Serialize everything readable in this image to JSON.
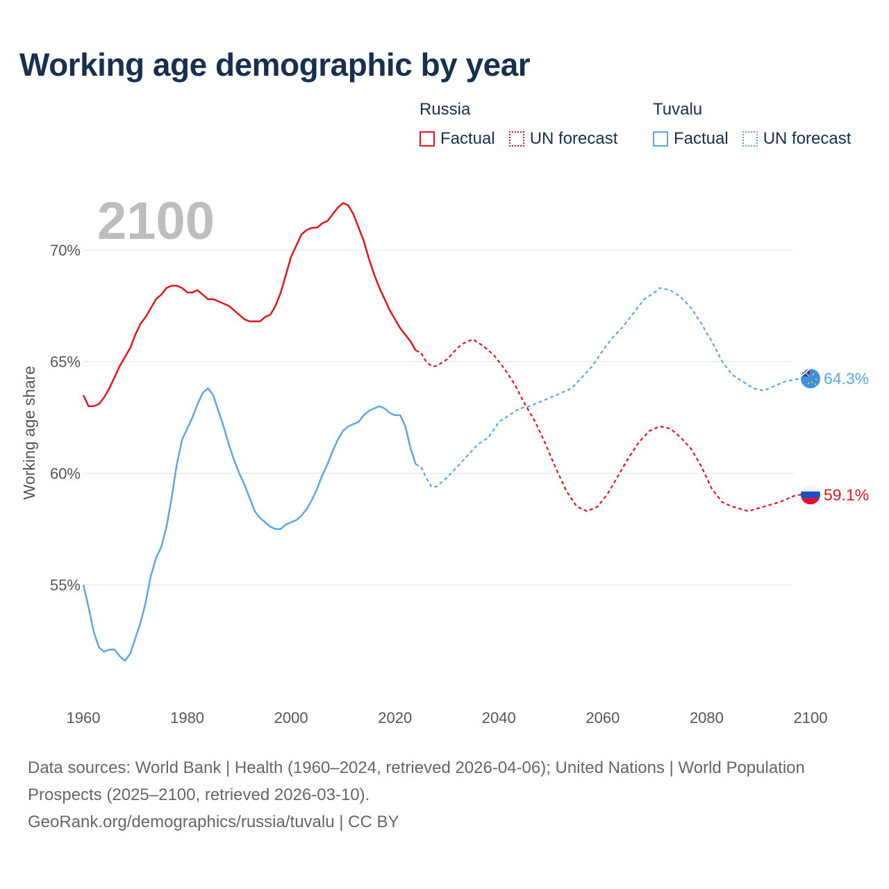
{
  "title": "Working age demographic by year",
  "year_label": "2100",
  "legend": [
    {
      "group": "Russia",
      "factual": "Factual",
      "forecast": "UN forecast",
      "color": "#e8121a"
    },
    {
      "group": "Tuvalu",
      "factual": "Factual",
      "forecast": "UN forecast",
      "color": "#5aa6e6"
    }
  ],
  "footer": {
    "sources": "Data sources: World Bank | Health (1960–2024, retrieved 2026-04-06); United Nations | World Population Prospects (2025–2100, retrieved 2026-03-10).",
    "credit": "GeoRank.org/demographics/russia/tuvalu | CC BY"
  },
  "chart_data": {
    "type": "line",
    "title": "Working age demographic by year",
    "xlabel": "",
    "ylabel": "Working age share",
    "xlim": [
      1960,
      2100
    ],
    "ylim": [
      51,
      73
    ],
    "x_ticks": [
      "1960",
      "1980",
      "2000",
      "2020",
      "2040",
      "2060",
      "2080",
      "2100"
    ],
    "y_ticks": [
      "55%",
      "60%",
      "65%",
      "70%"
    ],
    "grid": true,
    "factual_until": 2024,
    "series": [
      {
        "name": "Russia",
        "color": "#e8121a",
        "end_label": "59.1%",
        "points": [
          [
            1960,
            63.5
          ],
          [
            1961,
            63.0
          ],
          [
            1962,
            63.0
          ],
          [
            1963,
            63.1
          ],
          [
            1964,
            63.4
          ],
          [
            1965,
            63.8
          ],
          [
            1966,
            64.3
          ],
          [
            1967,
            64.8
          ],
          [
            1968,
            65.2
          ],
          [
            1969,
            65.6
          ],
          [
            1970,
            66.2
          ],
          [
            1971,
            66.7
          ],
          [
            1972,
            67.0
          ],
          [
            1973,
            67.4
          ],
          [
            1974,
            67.8
          ],
          [
            1975,
            68.0
          ],
          [
            1976,
            68.3
          ],
          [
            1977,
            68.4
          ],
          [
            1978,
            68.4
          ],
          [
            1979,
            68.3
          ],
          [
            1980,
            68.1
          ],
          [
            1981,
            68.1
          ],
          [
            1982,
            68.2
          ],
          [
            1983,
            68.0
          ],
          [
            1984,
            67.8
          ],
          [
            1985,
            67.8
          ],
          [
            1986,
            67.7
          ],
          [
            1987,
            67.6
          ],
          [
            1988,
            67.5
          ],
          [
            1989,
            67.3
          ],
          [
            1990,
            67.1
          ],
          [
            1991,
            66.9
          ],
          [
            1992,
            66.8
          ],
          [
            1993,
            66.8
          ],
          [
            1994,
            66.8
          ],
          [
            1995,
            67.0
          ],
          [
            1996,
            67.1
          ],
          [
            1997,
            67.5
          ],
          [
            1998,
            68.1
          ],
          [
            1999,
            68.9
          ],
          [
            2000,
            69.7
          ],
          [
            2001,
            70.2
          ],
          [
            2002,
            70.7
          ],
          [
            2003,
            70.9
          ],
          [
            2004,
            71.0
          ],
          [
            2005,
            71.0
          ],
          [
            2006,
            71.2
          ],
          [
            2007,
            71.3
          ],
          [
            2008,
            71.6
          ],
          [
            2009,
            71.9
          ],
          [
            2010,
            72.1
          ],
          [
            2011,
            72.0
          ],
          [
            2012,
            71.6
          ],
          [
            2013,
            71.0
          ],
          [
            2014,
            70.4
          ],
          [
            2015,
            69.6
          ],
          [
            2016,
            68.9
          ],
          [
            2017,
            68.3
          ],
          [
            2018,
            67.8
          ],
          [
            2019,
            67.3
          ],
          [
            2020,
            66.9
          ],
          [
            2021,
            66.5
          ],
          [
            2022,
            66.2
          ],
          [
            2023,
            65.9
          ],
          [
            2024,
            65.5
          ],
          [
            2025,
            65.4
          ],
          [
            2026,
            65.0
          ],
          [
            2027,
            64.8
          ],
          [
            2028,
            64.8
          ],
          [
            2030,
            65.1
          ],
          [
            2032,
            65.6
          ],
          [
            2033,
            65.8
          ],
          [
            2035,
            66.0
          ],
          [
            2037,
            65.7
          ],
          [
            2039,
            65.3
          ],
          [
            2041,
            64.7
          ],
          [
            2043,
            64.0
          ],
          [
            2045,
            63.1
          ],
          [
            2047,
            62.3
          ],
          [
            2049,
            61.3
          ],
          [
            2051,
            60.2
          ],
          [
            2053,
            59.2
          ],
          [
            2055,
            58.5
          ],
          [
            2057,
            58.3
          ],
          [
            2059,
            58.5
          ],
          [
            2061,
            59.1
          ],
          [
            2063,
            59.9
          ],
          [
            2065,
            60.7
          ],
          [
            2067,
            61.4
          ],
          [
            2069,
            61.9
          ],
          [
            2071,
            62.1
          ],
          [
            2073,
            62.0
          ],
          [
            2075,
            61.6
          ],
          [
            2077,
            61.1
          ],
          [
            2079,
            60.3
          ],
          [
            2081,
            59.3
          ],
          [
            2083,
            58.7
          ],
          [
            2085,
            58.5
          ],
          [
            2088,
            58.3
          ],
          [
            2091,
            58.5
          ],
          [
            2094,
            58.7
          ],
          [
            2097,
            59.0
          ],
          [
            2100,
            59.1
          ]
        ]
      },
      {
        "name": "Tuvalu",
        "color": "#5aa6e6",
        "end_label": "64.3%",
        "points": [
          [
            1960,
            55.0
          ],
          [
            1961,
            54.0
          ],
          [
            1962,
            52.9
          ],
          [
            1963,
            52.2
          ],
          [
            1964,
            52.0
          ],
          [
            1965,
            52.1
          ],
          [
            1966,
            52.1
          ],
          [
            1967,
            51.8
          ],
          [
            1968,
            51.6
          ],
          [
            1969,
            51.9
          ],
          [
            1970,
            52.6
          ],
          [
            1971,
            53.3
          ],
          [
            1972,
            54.2
          ],
          [
            1973,
            55.4
          ],
          [
            1974,
            56.2
          ],
          [
            1975,
            56.7
          ],
          [
            1976,
            57.6
          ],
          [
            1977,
            58.9
          ],
          [
            1978,
            60.4
          ],
          [
            1979,
            61.5
          ],
          [
            1980,
            62.0
          ],
          [
            1981,
            62.5
          ],
          [
            1982,
            63.1
          ],
          [
            1983,
            63.6
          ],
          [
            1984,
            63.8
          ],
          [
            1985,
            63.5
          ],
          [
            1986,
            62.8
          ],
          [
            1987,
            62.1
          ],
          [
            1988,
            61.3
          ],
          [
            1989,
            60.6
          ],
          [
            1990,
            60.0
          ],
          [
            1991,
            59.5
          ],
          [
            1992,
            58.9
          ],
          [
            1993,
            58.3
          ],
          [
            1994,
            58.0
          ],
          [
            1995,
            57.8
          ],
          [
            1996,
            57.6
          ],
          [
            1997,
            57.5
          ],
          [
            1998,
            57.5
          ],
          [
            1999,
            57.7
          ],
          [
            2000,
            57.8
          ],
          [
            2001,
            57.9
          ],
          [
            2002,
            58.1
          ],
          [
            2003,
            58.4
          ],
          [
            2004,
            58.8
          ],
          [
            2005,
            59.3
          ],
          [
            2006,
            59.9
          ],
          [
            2007,
            60.4
          ],
          [
            2008,
            61.0
          ],
          [
            2009,
            61.5
          ],
          [
            2010,
            61.9
          ],
          [
            2011,
            62.1
          ],
          [
            2012,
            62.2
          ],
          [
            2013,
            62.3
          ],
          [
            2014,
            62.6
          ],
          [
            2015,
            62.8
          ],
          [
            2016,
            62.9
          ],
          [
            2017,
            63.0
          ],
          [
            2018,
            62.9
          ],
          [
            2019,
            62.7
          ],
          [
            2020,
            62.6
          ],
          [
            2021,
            62.6
          ],
          [
            2022,
            62.1
          ],
          [
            2023,
            61.1
          ],
          [
            2024,
            60.4
          ],
          [
            2025,
            60.3
          ],
          [
            2026,
            59.8
          ],
          [
            2027,
            59.4
          ],
          [
            2028,
            59.4
          ],
          [
            2030,
            59.8
          ],
          [
            2032,
            60.3
          ],
          [
            2034,
            60.8
          ],
          [
            2036,
            61.3
          ],
          [
            2038,
            61.6
          ],
          [
            2040,
            62.3
          ],
          [
            2042,
            62.6
          ],
          [
            2044,
            62.9
          ],
          [
            2046,
            63.0
          ],
          [
            2048,
            63.2
          ],
          [
            2050,
            63.4
          ],
          [
            2052,
            63.6
          ],
          [
            2054,
            63.8
          ],
          [
            2056,
            64.3
          ],
          [
            2058,
            64.8
          ],
          [
            2060,
            65.5
          ],
          [
            2062,
            66.1
          ],
          [
            2064,
            66.6
          ],
          [
            2066,
            67.2
          ],
          [
            2068,
            67.8
          ],
          [
            2070,
            68.1
          ],
          [
            2071,
            68.3
          ],
          [
            2073,
            68.2
          ],
          [
            2075,
            67.9
          ],
          [
            2077,
            67.4
          ],
          [
            2079,
            66.7
          ],
          [
            2081,
            65.9
          ],
          [
            2083,
            65.0
          ],
          [
            2085,
            64.4
          ],
          [
            2087,
            64.1
          ],
          [
            2089,
            63.8
          ],
          [
            2091,
            63.7
          ],
          [
            2093,
            63.9
          ],
          [
            2095,
            64.1
          ],
          [
            2097,
            64.2
          ],
          [
            2100,
            64.3
          ]
        ]
      }
    ]
  }
}
